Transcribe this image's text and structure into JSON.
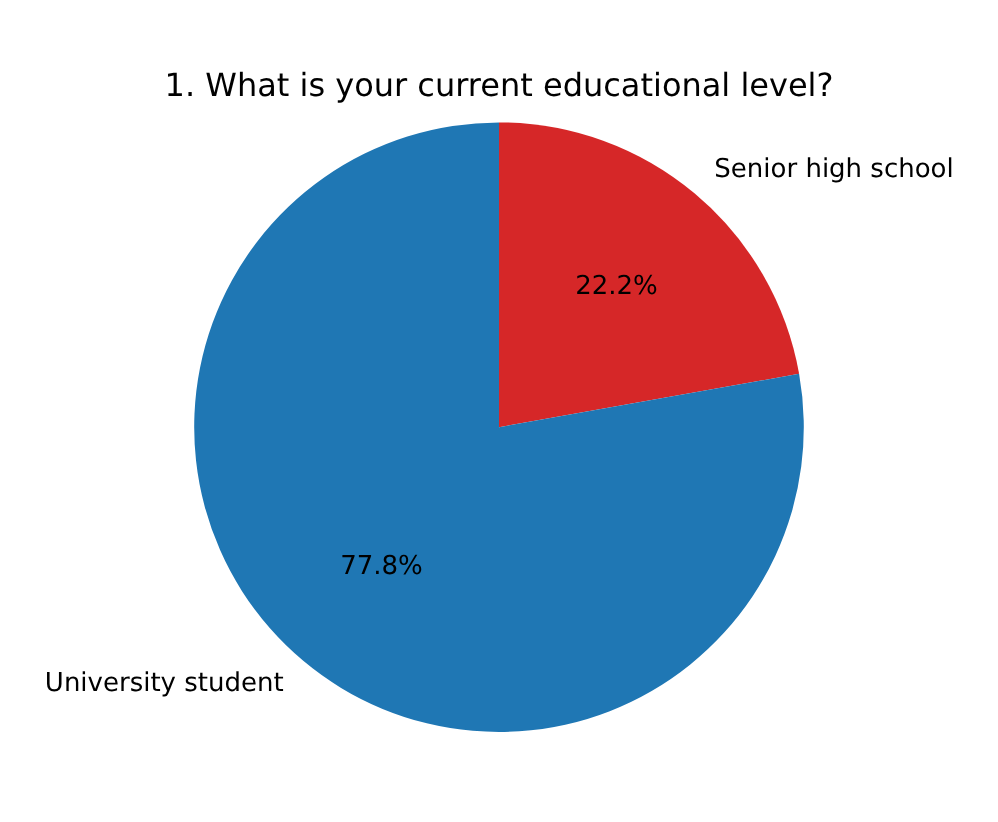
{
  "chart_data": {
    "type": "pie",
    "title": "1. What is your current educational level?",
    "categories": [
      "Senior high school",
      "University student"
    ],
    "values": [
      22.2,
      77.8
    ],
    "colors": [
      "#d62728",
      "#1f77b4"
    ],
    "value_labels": [
      "22.2%",
      "77.8%"
    ],
    "legend": false
  }
}
